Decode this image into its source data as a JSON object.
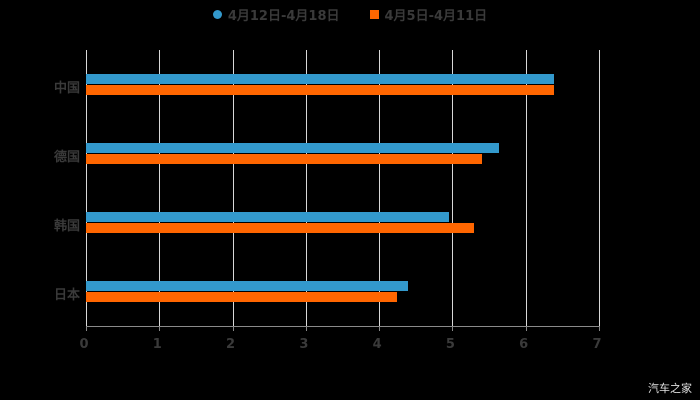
{
  "chart_data": {
    "type": "bar",
    "orientation": "horizontal",
    "categories": [
      "中国",
      "德国",
      "韩国",
      "日本"
    ],
    "series": [
      {
        "name": "4月12日-4月18日",
        "color": "#3399cc",
        "values": [
          6.39,
          5.63,
          4.96,
          4.39
        ]
      },
      {
        "name": "4月5日-4月11日",
        "color": "#ff6600",
        "values": [
          6.38,
          5.4,
          5.3,
          4.25
        ]
      }
    ],
    "xlim": [
      0,
      7
    ],
    "xticks": [
      "0",
      "1",
      "2",
      "3",
      "4",
      "5",
      "6",
      "7"
    ],
    "grid": true,
    "legend_position": "top",
    "title": "",
    "xlabel": "",
    "ylabel": ""
  },
  "watermark": "汽车之家"
}
